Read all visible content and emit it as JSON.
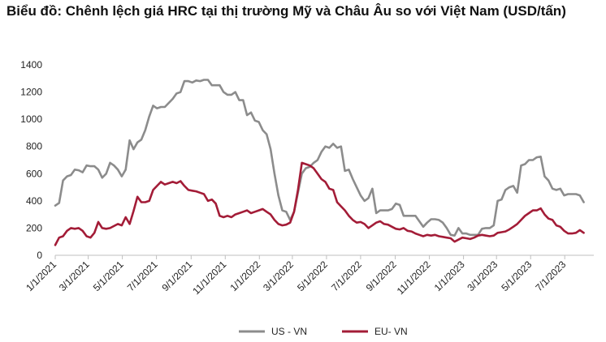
{
  "chart_data": {
    "type": "line",
    "title": "Biểu đồ: Chênh lệch giá HRC tại thị trường Mỹ và Châu Âu so với Việt Nam (USD/tấn)",
    "xlabel": "",
    "ylabel": "",
    "ylim": [
      0,
      1400
    ],
    "yticks": [
      0,
      200,
      400,
      600,
      800,
      1000,
      1200,
      1400
    ],
    "xlim": [
      "2021-01-01",
      "2023-08-22"
    ],
    "xticks": [
      "1/1/2021",
      "3/1/2021",
      "5/1/2021",
      "7/1/2021",
      "9/1/2021",
      "11/1/2021",
      "1/1/2022",
      "3/1/2022",
      "5/1/2022",
      "7/1/2022",
      "9/1/2022",
      "11/1/2022",
      "1/1/2023",
      "3/1/2023",
      "5/1/2023",
      "7/1/2023"
    ],
    "grid": false,
    "legend": "bottom",
    "colors": {
      "us_vn": "#8c8c8c",
      "eu_vn": "#a31c37"
    },
    "series": [
      {
        "name": "US - VN",
        "color": "#8c8c8c",
        "points": [
          [
            "2021-01-01",
            365
          ],
          [
            "2021-01-08",
            385
          ],
          [
            "2021-01-15",
            550
          ],
          [
            "2021-01-22",
            580
          ],
          [
            "2021-01-29",
            590
          ],
          [
            "2021-02-05",
            630
          ],
          [
            "2021-02-12",
            625
          ],
          [
            "2021-02-19",
            610
          ],
          [
            "2021-02-26",
            660
          ],
          [
            "2021-03-05",
            655
          ],
          [
            "2021-03-12",
            655
          ],
          [
            "2021-03-19",
            630
          ],
          [
            "2021-03-26",
            570
          ],
          [
            "2021-04-02",
            600
          ],
          [
            "2021-04-09",
            680
          ],
          [
            "2021-04-16",
            660
          ],
          [
            "2021-04-23",
            630
          ],
          [
            "2021-04-30",
            580
          ],
          [
            "2021-05-07",
            630
          ],
          [
            "2021-05-14",
            845
          ],
          [
            "2021-05-21",
            780
          ],
          [
            "2021-05-28",
            830
          ],
          [
            "2021-06-04",
            850
          ],
          [
            "2021-06-11",
            920
          ],
          [
            "2021-06-18",
            1020
          ],
          [
            "2021-06-25",
            1100
          ],
          [
            "2021-07-02",
            1080
          ],
          [
            "2021-07-09",
            1090
          ],
          [
            "2021-07-16",
            1090
          ],
          [
            "2021-07-23",
            1120
          ],
          [
            "2021-07-30",
            1150
          ],
          [
            "2021-08-06",
            1190
          ],
          [
            "2021-08-13",
            1200
          ],
          [
            "2021-08-20",
            1280
          ],
          [
            "2021-08-27",
            1280
          ],
          [
            "2021-09-03",
            1270
          ],
          [
            "2021-09-10",
            1285
          ],
          [
            "2021-09-17",
            1280
          ],
          [
            "2021-09-24",
            1290
          ],
          [
            "2021-10-01",
            1290
          ],
          [
            "2021-10-08",
            1250
          ],
          [
            "2021-10-15",
            1250
          ],
          [
            "2021-10-22",
            1250
          ],
          [
            "2021-10-29",
            1200
          ],
          [
            "2021-11-05",
            1180
          ],
          [
            "2021-11-12",
            1180
          ],
          [
            "2021-11-19",
            1200
          ],
          [
            "2021-11-26",
            1140
          ],
          [
            "2021-12-03",
            1140
          ],
          [
            "2021-12-10",
            1030
          ],
          [
            "2021-12-17",
            1050
          ],
          [
            "2021-12-24",
            990
          ],
          [
            "2021-12-31",
            980
          ],
          [
            "2022-01-07",
            920
          ],
          [
            "2022-01-14",
            890
          ],
          [
            "2022-01-21",
            780
          ],
          [
            "2022-01-28",
            600
          ],
          [
            "2022-02-04",
            440
          ],
          [
            "2022-02-11",
            330
          ],
          [
            "2022-02-18",
            320
          ],
          [
            "2022-02-25",
            260
          ],
          [
            "2022-03-04",
            320
          ],
          [
            "2022-03-11",
            460
          ],
          [
            "2022-03-18",
            600
          ],
          [
            "2022-03-25",
            640
          ],
          [
            "2022-04-01",
            650
          ],
          [
            "2022-04-08",
            680
          ],
          [
            "2022-04-15",
            700
          ],
          [
            "2022-04-22",
            760
          ],
          [
            "2022-04-29",
            800
          ],
          [
            "2022-05-06",
            790
          ],
          [
            "2022-05-13",
            820
          ],
          [
            "2022-05-20",
            790
          ],
          [
            "2022-05-27",
            800
          ],
          [
            "2022-06-03",
            620
          ],
          [
            "2022-06-10",
            630
          ],
          [
            "2022-06-17",
            560
          ],
          [
            "2022-06-24",
            500
          ],
          [
            "2022-07-01",
            440
          ],
          [
            "2022-07-08",
            400
          ],
          [
            "2022-07-15",
            420
          ],
          [
            "2022-07-22",
            490
          ],
          [
            "2022-07-29",
            310
          ],
          [
            "2022-08-05",
            330
          ],
          [
            "2022-08-12",
            330
          ],
          [
            "2022-08-19",
            330
          ],
          [
            "2022-08-26",
            340
          ],
          [
            "2022-09-02",
            380
          ],
          [
            "2022-09-09",
            370
          ],
          [
            "2022-09-16",
            290
          ],
          [
            "2022-09-23",
            290
          ],
          [
            "2022-09-30",
            290
          ],
          [
            "2022-10-07",
            290
          ],
          [
            "2022-10-14",
            250
          ],
          [
            "2022-10-21",
            210
          ],
          [
            "2022-10-28",
            240
          ],
          [
            "2022-11-04",
            265
          ],
          [
            "2022-11-11",
            265
          ],
          [
            "2022-11-18",
            260
          ],
          [
            "2022-11-25",
            240
          ],
          [
            "2022-12-02",
            200
          ],
          [
            "2022-12-09",
            150
          ],
          [
            "2022-12-16",
            145
          ],
          [
            "2022-12-23",
            200
          ],
          [
            "2022-12-30",
            160
          ],
          [
            "2023-01-06",
            160
          ],
          [
            "2023-01-13",
            150
          ],
          [
            "2023-01-20",
            150
          ],
          [
            "2023-01-27",
            150
          ],
          [
            "2023-02-03",
            195
          ],
          [
            "2023-02-10",
            200
          ],
          [
            "2023-02-17",
            200
          ],
          [
            "2023-02-24",
            220
          ],
          [
            "2023-03-03",
            400
          ],
          [
            "2023-03-10",
            410
          ],
          [
            "2023-03-17",
            480
          ],
          [
            "2023-03-24",
            500
          ],
          [
            "2023-03-31",
            510
          ],
          [
            "2023-04-07",
            460
          ],
          [
            "2023-04-14",
            660
          ],
          [
            "2023-04-21",
            670
          ],
          [
            "2023-04-28",
            700
          ],
          [
            "2023-05-05",
            700
          ],
          [
            "2023-05-12",
            720
          ],
          [
            "2023-05-19",
            725
          ],
          [
            "2023-05-26",
            580
          ],
          [
            "2023-06-02",
            550
          ],
          [
            "2023-06-09",
            490
          ],
          [
            "2023-06-16",
            480
          ],
          [
            "2023-06-23",
            490
          ],
          [
            "2023-06-30",
            440
          ],
          [
            "2023-07-07",
            450
          ],
          [
            "2023-07-14",
            450
          ],
          [
            "2023-07-21",
            450
          ],
          [
            "2023-07-28",
            440
          ],
          [
            "2023-08-04",
            390
          ]
        ]
      },
      {
        "name": "EU- VN",
        "color": "#a31c37",
        "points": [
          [
            "2021-01-01",
            75
          ],
          [
            "2021-01-08",
            130
          ],
          [
            "2021-01-15",
            140
          ],
          [
            "2021-01-22",
            180
          ],
          [
            "2021-01-29",
            200
          ],
          [
            "2021-02-05",
            195
          ],
          [
            "2021-02-12",
            200
          ],
          [
            "2021-02-19",
            180
          ],
          [
            "2021-02-26",
            140
          ],
          [
            "2021-03-05",
            130
          ],
          [
            "2021-03-12",
            165
          ],
          [
            "2021-03-19",
            245
          ],
          [
            "2021-03-26",
            200
          ],
          [
            "2021-04-02",
            195
          ],
          [
            "2021-04-09",
            200
          ],
          [
            "2021-04-16",
            215
          ],
          [
            "2021-04-23",
            230
          ],
          [
            "2021-04-30",
            220
          ],
          [
            "2021-05-07",
            280
          ],
          [
            "2021-05-14",
            230
          ],
          [
            "2021-05-21",
            325
          ],
          [
            "2021-05-28",
            430
          ],
          [
            "2021-06-04",
            390
          ],
          [
            "2021-06-11",
            390
          ],
          [
            "2021-06-18",
            400
          ],
          [
            "2021-06-25",
            480
          ],
          [
            "2021-07-02",
            510
          ],
          [
            "2021-07-09",
            540
          ],
          [
            "2021-07-16",
            520
          ],
          [
            "2021-07-23",
            530
          ],
          [
            "2021-07-30",
            540
          ],
          [
            "2021-08-06",
            530
          ],
          [
            "2021-08-13",
            545
          ],
          [
            "2021-08-20",
            510
          ],
          [
            "2021-08-27",
            480
          ],
          [
            "2021-09-03",
            475
          ],
          [
            "2021-09-10",
            470
          ],
          [
            "2021-09-17",
            460
          ],
          [
            "2021-09-24",
            450
          ],
          [
            "2021-10-01",
            400
          ],
          [
            "2021-10-08",
            410
          ],
          [
            "2021-10-15",
            380
          ],
          [
            "2021-10-22",
            290
          ],
          [
            "2021-10-29",
            280
          ],
          [
            "2021-11-05",
            290
          ],
          [
            "2021-11-12",
            280
          ],
          [
            "2021-11-19",
            300
          ],
          [
            "2021-11-26",
            310
          ],
          [
            "2021-12-03",
            320
          ],
          [
            "2021-12-10",
            330
          ],
          [
            "2021-12-17",
            310
          ],
          [
            "2021-12-24",
            320
          ],
          [
            "2021-12-31",
            330
          ],
          [
            "2022-01-07",
            340
          ],
          [
            "2022-01-14",
            320
          ],
          [
            "2022-01-21",
            300
          ],
          [
            "2022-01-28",
            260
          ],
          [
            "2022-02-04",
            230
          ],
          [
            "2022-02-11",
            220
          ],
          [
            "2022-02-18",
            225
          ],
          [
            "2022-02-25",
            240
          ],
          [
            "2022-03-04",
            320
          ],
          [
            "2022-03-11",
            480
          ],
          [
            "2022-03-18",
            680
          ],
          [
            "2022-03-25",
            670
          ],
          [
            "2022-04-01",
            660
          ],
          [
            "2022-04-08",
            640
          ],
          [
            "2022-04-15",
            600
          ],
          [
            "2022-04-22",
            560
          ],
          [
            "2022-04-29",
            540
          ],
          [
            "2022-05-06",
            490
          ],
          [
            "2022-05-13",
            480
          ],
          [
            "2022-05-20",
            390
          ],
          [
            "2022-05-27",
            360
          ],
          [
            "2022-06-03",
            330
          ],
          [
            "2022-06-10",
            290
          ],
          [
            "2022-06-17",
            260
          ],
          [
            "2022-06-24",
            240
          ],
          [
            "2022-07-01",
            245
          ],
          [
            "2022-07-08",
            230
          ],
          [
            "2022-07-15",
            200
          ],
          [
            "2022-07-22",
            220
          ],
          [
            "2022-07-29",
            240
          ],
          [
            "2022-08-05",
            250
          ],
          [
            "2022-08-12",
            230
          ],
          [
            "2022-08-19",
            225
          ],
          [
            "2022-08-26",
            210
          ],
          [
            "2022-09-02",
            195
          ],
          [
            "2022-09-09",
            190
          ],
          [
            "2022-09-16",
            200
          ],
          [
            "2022-09-23",
            180
          ],
          [
            "2022-09-30",
            175
          ],
          [
            "2022-10-07",
            160
          ],
          [
            "2022-10-14",
            150
          ],
          [
            "2022-10-21",
            140
          ],
          [
            "2022-10-28",
            150
          ],
          [
            "2022-11-04",
            145
          ],
          [
            "2022-11-11",
            150
          ],
          [
            "2022-11-18",
            140
          ],
          [
            "2022-11-25",
            135
          ],
          [
            "2022-12-02",
            130
          ],
          [
            "2022-12-09",
            125
          ],
          [
            "2022-12-16",
            100
          ],
          [
            "2022-12-23",
            115
          ],
          [
            "2022-12-30",
            130
          ],
          [
            "2023-01-06",
            125
          ],
          [
            "2023-01-13",
            120
          ],
          [
            "2023-01-20",
            130
          ],
          [
            "2023-01-27",
            145
          ],
          [
            "2023-02-03",
            150
          ],
          [
            "2023-02-10",
            145
          ],
          [
            "2023-02-17",
            140
          ],
          [
            "2023-02-24",
            145
          ],
          [
            "2023-03-03",
            165
          ],
          [
            "2023-03-10",
            170
          ],
          [
            "2023-03-17",
            175
          ],
          [
            "2023-03-24",
            190
          ],
          [
            "2023-03-31",
            210
          ],
          [
            "2023-04-07",
            230
          ],
          [
            "2023-04-14",
            260
          ],
          [
            "2023-04-21",
            290
          ],
          [
            "2023-04-28",
            310
          ],
          [
            "2023-05-05",
            330
          ],
          [
            "2023-05-12",
            330
          ],
          [
            "2023-05-19",
            345
          ],
          [
            "2023-05-26",
            300
          ],
          [
            "2023-06-02",
            270
          ],
          [
            "2023-06-09",
            260
          ],
          [
            "2023-06-16",
            220
          ],
          [
            "2023-06-23",
            210
          ],
          [
            "2023-06-30",
            180
          ],
          [
            "2023-07-07",
            160
          ],
          [
            "2023-07-14",
            160
          ],
          [
            "2023-07-21",
            165
          ],
          [
            "2023-07-28",
            185
          ],
          [
            "2023-08-04",
            165
          ]
        ]
      }
    ]
  }
}
